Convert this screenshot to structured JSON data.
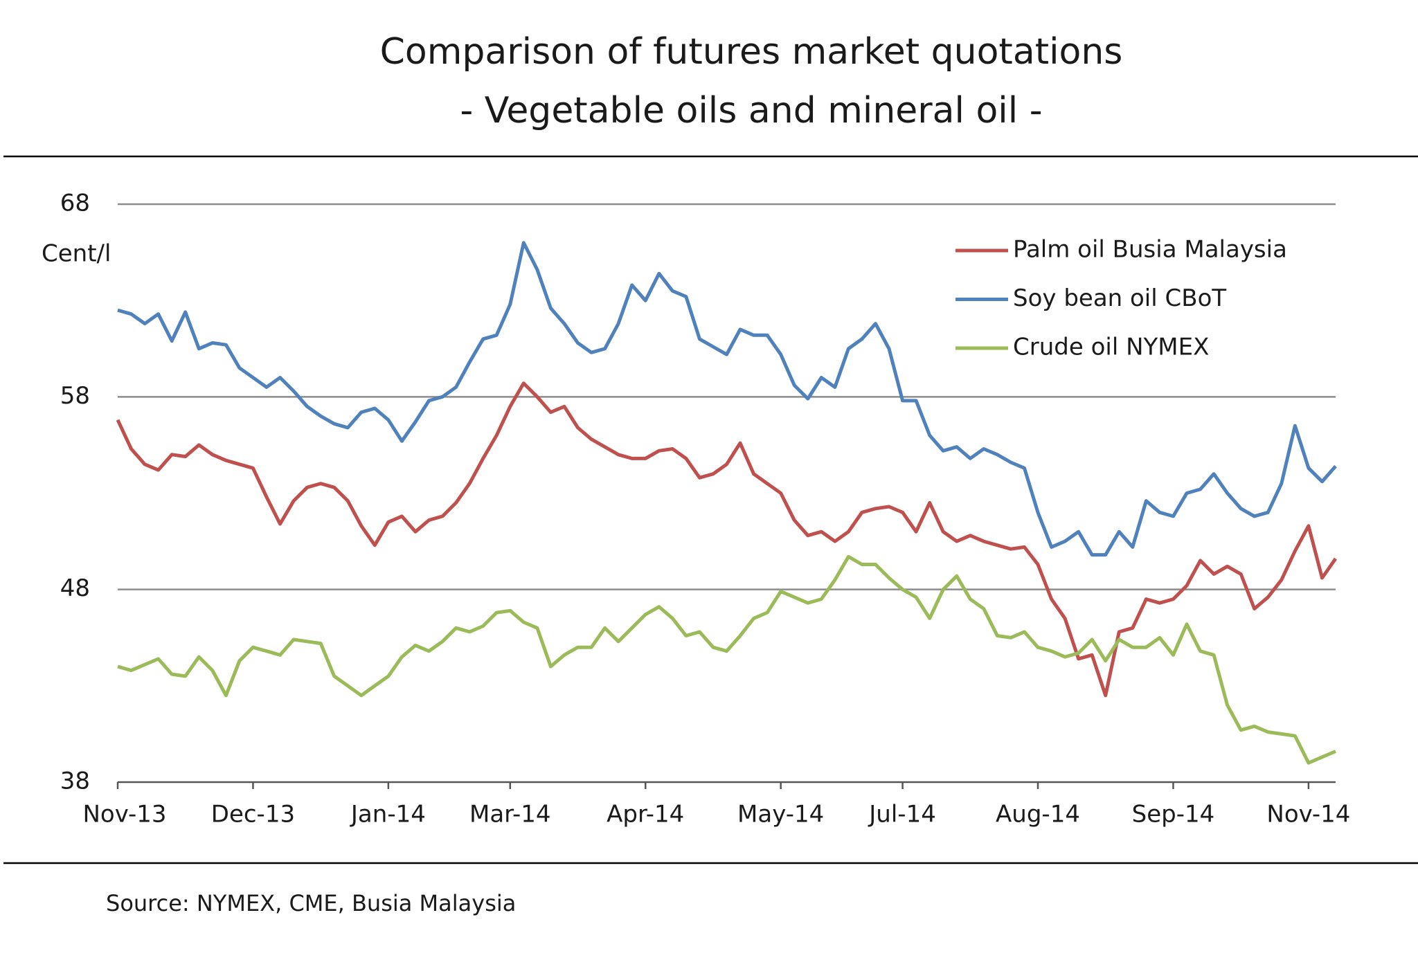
{
  "chart_data": {
    "type": "line",
    "title": "Comparison of futures market quotations",
    "subtitle": "- Vegetable oils and mineral oil -",
    "y_label": "Cent/l",
    "source": "Source: NYMEX, CME, Busia Malaysia",
    "categories": [
      "Nov-13",
      null,
      null,
      null,
      null,
      null,
      null,
      null,
      null,
      null,
      "Dec-13",
      null,
      null,
      null,
      null,
      null,
      null,
      null,
      null,
      null,
      "Jan-14",
      null,
      null,
      null,
      null,
      null,
      null,
      null,
      null,
      "Mar-14",
      null,
      null,
      null,
      null,
      null,
      null,
      null,
      null,
      null,
      "Apr-14",
      null,
      null,
      null,
      null,
      null,
      null,
      null,
      null,
      null,
      "May-14",
      null,
      null,
      null,
      null,
      null,
      null,
      null,
      null,
      "Jul-14",
      null,
      null,
      null,
      null,
      null,
      null,
      null,
      null,
      null,
      "Aug-14",
      null,
      null,
      null,
      null,
      null,
      null,
      null,
      null,
      null,
      "Sep-14",
      null,
      null,
      null,
      null,
      null,
      null,
      null,
      null,
      null,
      "Nov-14",
      null,
      null
    ],
    "series": [
      {
        "name": "Palm oil Busia Malaysia",
        "color": "#c0504d",
        "values": [
          56.8,
          55.3,
          54.5,
          54.2,
          55.0,
          54.9,
          55.5,
          55.0,
          54.7,
          54.5,
          54.3,
          52.8,
          51.4,
          52.6,
          53.3,
          53.5,
          53.3,
          52.6,
          51.3,
          50.3,
          51.5,
          51.8,
          51.0,
          51.6,
          51.8,
          52.5,
          53.5,
          54.8,
          56.0,
          57.5,
          58.7,
          58.0,
          57.2,
          57.5,
          56.4,
          55.8,
          55.4,
          55.0,
          54.8,
          54.8,
          55.2,
          55.3,
          54.8,
          53.8,
          54.0,
          54.5,
          55.6,
          54.0,
          53.5,
          53.0,
          51.6,
          50.8,
          51.0,
          50.5,
          51.0,
          52.0,
          52.2,
          52.3,
          52.0,
          51.0,
          52.5,
          51.0,
          50.5,
          50.8,
          50.5,
          50.3,
          50.1,
          50.2,
          49.3,
          47.5,
          46.5,
          44.4,
          44.6,
          42.5,
          45.8,
          46.0,
          47.5,
          47.3,
          47.5,
          48.2,
          49.5,
          48.8,
          49.2,
          48.8,
          47.0,
          47.6,
          48.5,
          50.0,
          51.3,
          48.6,
          49.6
        ]
      },
      {
        "name": "Soy bean oil CBoT",
        "color": "#4f81bd",
        "values": [
          62.5,
          62.3,
          61.8,
          62.3,
          60.9,
          62.4,
          60.5,
          60.8,
          60.7,
          59.5,
          59.0,
          58.5,
          59.0,
          58.3,
          57.5,
          57.0,
          56.6,
          56.4,
          57.2,
          57.4,
          56.8,
          55.7,
          56.7,
          57.8,
          58.0,
          58.5,
          59.8,
          61.0,
          61.2,
          62.8,
          66.0,
          64.6,
          62.6,
          61.8,
          60.8,
          60.3,
          60.5,
          61.8,
          63.8,
          63.0,
          64.4,
          63.5,
          63.2,
          61.0,
          60.6,
          60.2,
          61.5,
          61.2,
          61.2,
          60.2,
          58.6,
          57.9,
          59.0,
          58.5,
          60.5,
          61.0,
          61.8,
          60.5,
          57.8,
          57.8,
          56.0,
          55.2,
          55.4,
          54.8,
          55.3,
          55.0,
          54.6,
          54.3,
          52.0,
          50.2,
          50.5,
          51.0,
          49.8,
          49.8,
          51.0,
          50.2,
          52.6,
          52.0,
          51.8,
          53.0,
          53.2,
          54.0,
          53.0,
          52.2,
          51.8,
          52.0,
          53.5,
          56.5,
          54.3,
          53.6,
          54.4
        ]
      },
      {
        "name": "Crude oil NYMEX",
        "color": "#9bbb59",
        "values": [
          44.0,
          43.8,
          44.1,
          44.4,
          43.6,
          43.5,
          44.5,
          43.8,
          42.5,
          44.3,
          45.0,
          44.8,
          44.6,
          45.4,
          45.3,
          45.2,
          43.5,
          43.0,
          42.5,
          43.0,
          43.5,
          44.5,
          45.1,
          44.8,
          45.3,
          46.0,
          45.8,
          46.1,
          46.8,
          46.9,
          46.3,
          46.0,
          44.0,
          44.6,
          45.0,
          45.0,
          46.0,
          45.3,
          46.0,
          46.7,
          47.1,
          46.5,
          45.6,
          45.8,
          45.0,
          44.8,
          45.6,
          46.5,
          46.8,
          47.9,
          47.6,
          47.3,
          47.5,
          48.5,
          49.7,
          49.3,
          49.3,
          48.6,
          48.0,
          47.6,
          46.5,
          48.0,
          48.7,
          47.5,
          47.0,
          45.6,
          45.5,
          45.8,
          45.0,
          44.8,
          44.5,
          44.7,
          45.4,
          44.3,
          45.4,
          45.0,
          45.0,
          45.5,
          44.6,
          46.2,
          44.8,
          44.6,
          42.0,
          40.7,
          40.9,
          40.6,
          40.5,
          40.4,
          39.0,
          39.3,
          39.6
        ]
      }
    ],
    "ylim": [
      38,
      68
    ],
    "yticks": [
      38,
      48,
      58,
      68
    ],
    "grid": true,
    "legend": "top-right"
  }
}
